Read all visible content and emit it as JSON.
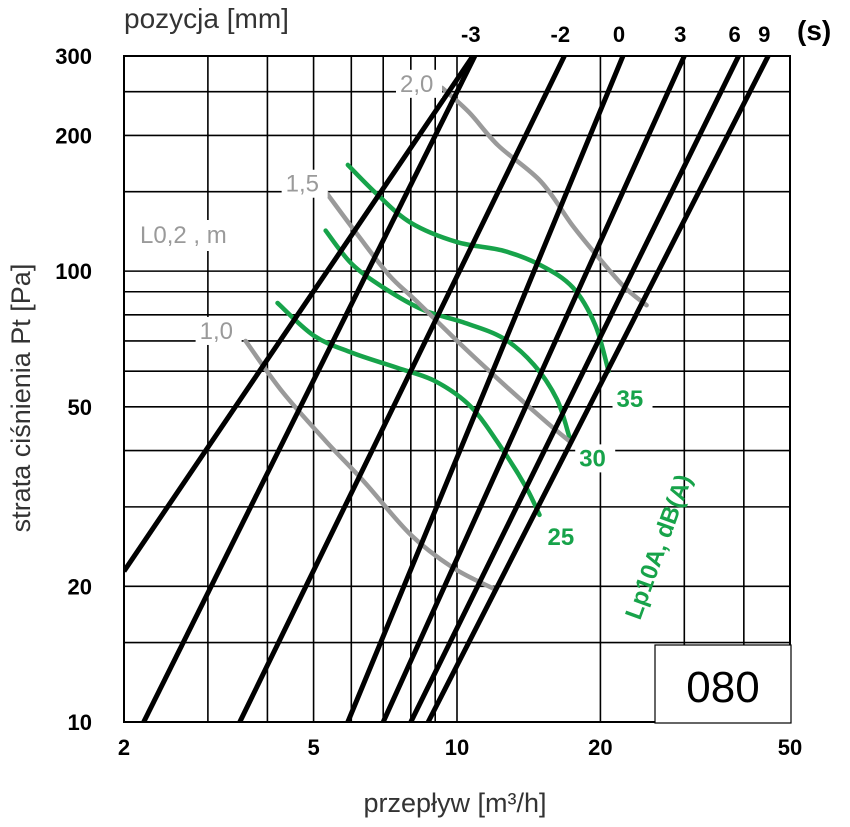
{
  "chart_data": {
    "type": "line",
    "model": "080",
    "xlabel": "przepływ [m³/h]",
    "ylabel": "strata ciśnienia Pt [Pa]",
    "top_axis_label": "pozycja [mm]",
    "s_label": "(s)",
    "x_scale": "log",
    "y_scale": "log",
    "xlim": [
      2,
      50
    ],
    "ylim": [
      10,
      300
    ],
    "x_ticks": [
      {
        "value": 2,
        "label": "2"
      },
      {
        "value": 5,
        "label": "5"
      },
      {
        "value": 10,
        "label": "10"
      },
      {
        "value": 20,
        "label": "20"
      },
      {
        "value": 50,
        "label": "50"
      }
    ],
    "y_ticks": [
      {
        "value": 10,
        "label": "10"
      },
      {
        "value": 20,
        "label": "20"
      },
      {
        "value": 50,
        "label": "50"
      },
      {
        "value": 100,
        "label": "100"
      },
      {
        "value": 200,
        "label": "200"
      },
      {
        "value": 300,
        "label": "300"
      }
    ],
    "x_grid": [
      2,
      3,
      4,
      5,
      6,
      7,
      8,
      9,
      10,
      20,
      30,
      40,
      50
    ],
    "y_grid": [
      10,
      15,
      20,
      30,
      40,
      50,
      60,
      70,
      80,
      90,
      100,
      150,
      200,
      250,
      300
    ],
    "position_lines": [
      {
        "label": "",
        "points": [
          [
            2,
            21.6
          ],
          [
            10.8,
            300
          ]
        ]
      },
      {
        "label": "-3",
        "points": [
          [
            2.2,
            10
          ],
          [
            10.9,
            300
          ]
        ]
      },
      {
        "label": "-2",
        "points": [
          [
            3.5,
            10
          ],
          [
            16.8,
            300
          ]
        ]
      },
      {
        "label": "0",
        "points": [
          [
            5.9,
            10
          ],
          [
            22.3,
            300
          ]
        ]
      },
      {
        "label": "3",
        "points": [
          [
            7.0,
            10
          ],
          [
            30.0,
            300
          ]
        ]
      },
      {
        "label": "6",
        "points": [
          [
            8.0,
            10
          ],
          [
            39.0,
            300
          ]
        ]
      },
      {
        "label": "9",
        "points": [
          [
            8.7,
            10
          ],
          [
            45.0,
            300
          ]
        ]
      }
    ],
    "throw_lines": {
      "legend": "L0,2 , m",
      "series": [
        {
          "name": "1,0",
          "points": [
            [
              3.6,
              70
            ],
            [
              4.3,
              54
            ],
            [
              5.3,
              42
            ],
            [
              6.4,
              34
            ],
            [
              8.0,
              26
            ],
            [
              9.8,
              22
            ],
            [
              12.0,
              19.7
            ]
          ]
        },
        {
          "name": "1,5",
          "points": [
            [
              5.3,
              150
            ],
            [
              6.2,
              120
            ],
            [
              7.2,
              98
            ],
            [
              8.2,
              86
            ],
            [
              10.3,
              68
            ],
            [
              12.8,
              55
            ],
            [
              15.5,
              46
            ],
            [
              17.2,
              42
            ]
          ]
        },
        {
          "name": "2,0",
          "points": [
            [
              9.3,
              255
            ],
            [
              10.6,
              225
            ],
            [
              12.2,
              190
            ],
            [
              15.0,
              158
            ],
            [
              17.5,
              126
            ],
            [
              20.0,
              106
            ],
            [
              22.5,
              92
            ],
            [
              25.0,
              84
            ]
          ]
        }
      ]
    },
    "noise_lines": {
      "legend": "Lp10A, dB(A)",
      "series": [
        {
          "name": "25",
          "points": [
            [
              4.2,
              85
            ],
            [
              5.0,
              72
            ],
            [
              6.0,
              66
            ],
            [
              7.5,
              61
            ],
            [
              9.0,
              57
            ],
            [
              10.7,
              50
            ],
            [
              12.5,
              40
            ],
            [
              14.0,
              33
            ],
            [
              14.9,
              28.8
            ]
          ]
        },
        {
          "name": "30",
          "points": [
            [
              5.3,
              123
            ],
            [
              6.0,
              104
            ],
            [
              7.0,
              92
            ],
            [
              8.5,
              82
            ],
            [
              10.3,
              77
            ],
            [
              12.5,
              71
            ],
            [
              14.5,
              62
            ],
            [
              16.2,
              52
            ],
            [
              17.2,
              43
            ]
          ]
        },
        {
          "name": "35",
          "points": [
            [
              5.9,
              172
            ],
            [
              6.8,
              148
            ],
            [
              8.0,
              128
            ],
            [
              10.0,
              116
            ],
            [
              12.5,
              111
            ],
            [
              15.0,
              103
            ],
            [
              17.5,
              92
            ],
            [
              19.5,
              76
            ],
            [
              20.8,
              60
            ]
          ]
        }
      ]
    },
    "colors": {
      "position": "#000000",
      "grid": "#000000",
      "throw": "#9a9a9a",
      "noise": "#17a34a"
    }
  }
}
